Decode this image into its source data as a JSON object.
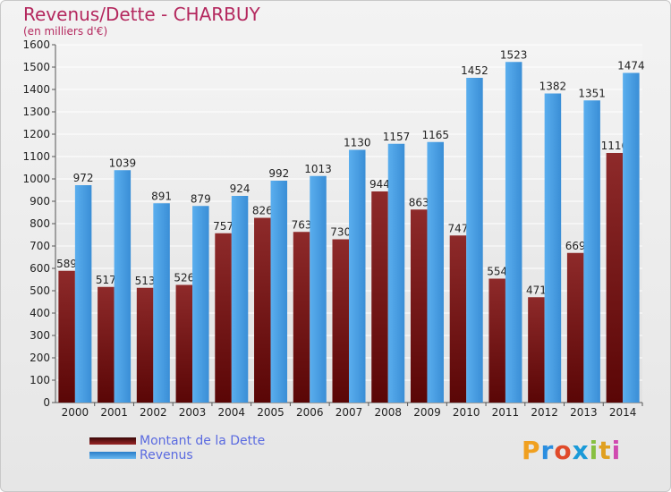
{
  "chart_data": {
    "type": "bar",
    "title": "Revenus/Dette - CHARBUY",
    "subtitle": "(en milliers d'€)",
    "categories": [
      "2000",
      "2001",
      "2002",
      "2003",
      "2004",
      "2005",
      "2006",
      "2007",
      "2008",
      "2009",
      "2010",
      "2011",
      "2012",
      "2013",
      "2014"
    ],
    "series": [
      {
        "name": "Montant de la Dette",
        "color": "#7a1a1a",
        "values": [
          589,
          517,
          513,
          526,
          757,
          826,
          763,
          730,
          944,
          863,
          747,
          554,
          471,
          669,
          1116
        ]
      },
      {
        "name": "Revenus",
        "color": "#4a9fe6",
        "values": [
          972,
          1039,
          891,
          879,
          924,
          992,
          1013,
          1130,
          1157,
          1165,
          1452,
          1523,
          1382,
          1351,
          1474
        ]
      }
    ],
    "ylim": [
      0,
      1600
    ],
    "yticks": [
      0,
      100,
      200,
      300,
      400,
      500,
      600,
      700,
      800,
      900,
      1000,
      1100,
      1200,
      1300,
      1400,
      1500,
      1600
    ],
    "grid": true,
    "legend": "bottom-left"
  },
  "logo": {
    "text": "Proxiti",
    "letters": [
      "P",
      "r",
      "o",
      "x",
      "i",
      "t",
      "i"
    ]
  }
}
